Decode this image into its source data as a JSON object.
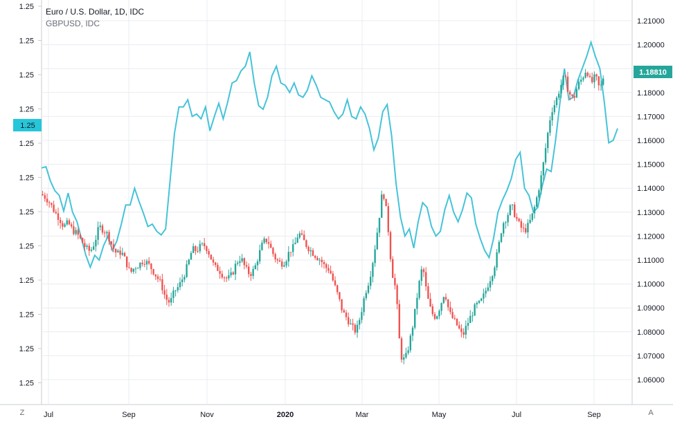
{
  "legend": {
    "title": "Euro / U.S. Dollar, 1D, IDC",
    "subtitle": "GBPUSD, IDC"
  },
  "left_axis": {
    "ticks": [
      "1.25",
      "1.25",
      "1.25",
      "1.25",
      "1.25",
      "1.25",
      "1.25",
      "1.25",
      "1.25",
      "1.25",
      "1.25",
      "1.25"
    ],
    "badge": "1.25"
  },
  "right_axis": {
    "ticks": [
      "1.21000",
      "1.20000",
      "1.19000",
      "1.18000",
      "1.17000",
      "1.16000",
      "1.15000",
      "1.14000",
      "1.13000",
      "1.12000",
      "1.11000",
      "1.10000",
      "1.09000",
      "1.08000",
      "1.07000",
      "1.06000"
    ],
    "badge": "1.18810"
  },
  "x_axis": {
    "ticks": [
      "Jul",
      "Sep",
      "Nov",
      "2020",
      "Mar",
      "May",
      "Jul",
      "Sep"
    ]
  },
  "corner_buttons": {
    "left": "Z",
    "right": "A"
  },
  "colors": {
    "up": "#26a69a",
    "down": "#ef5350",
    "overlay": "#45c3d8",
    "grid": "#e9ecf1",
    "price_badge": "#26a69a",
    "left_badge": "#26c6da"
  },
  "chart_data": {
    "type": "candlestick",
    "title": "Euro / U.S. Dollar, 1D, IDC",
    "x_ticks": [
      "Jul",
      "Sep",
      "Nov",
      "2020",
      "Mar",
      "May",
      "Jul",
      "Sep"
    ],
    "y_range_right": [
      1.055,
      1.215
    ],
    "last_price": 1.1881,
    "series": [
      {
        "name": "Euro / U.S. Dollar",
        "axis": "right",
        "kind": "candle",
        "close_path": [
          [
            0,
            1.1375
          ],
          [
            4,
            1.136
          ],
          [
            8,
            1.1335
          ],
          [
            12,
            1.13
          ],
          [
            16,
            1.1275
          ],
          [
            20,
            1.124
          ],
          [
            24,
            1.1255
          ],
          [
            28,
            1.1225
          ],
          [
            32,
            1.121
          ],
          [
            36,
            1.118
          ],
          [
            40,
            1.115
          ],
          [
            44,
            1.1135
          ],
          [
            48,
            1.1175
          ],
          [
            52,
            1.124
          ],
          [
            56,
            1.1225
          ],
          [
            60,
            1.1205
          ],
          [
            64,
            1.1155
          ],
          [
            68,
            1.1125
          ],
          [
            72,
            1.1135
          ],
          [
            76,
            1.1095
          ],
          [
            80,
            1.1045
          ],
          [
            84,
            1.107
          ],
          [
            88,
            1.108
          ],
          [
            92,
            1.11
          ],
          [
            96,
            1.1085
          ],
          [
            100,
            1.106
          ],
          [
            104,
            1.103
          ],
          [
            108,
            1.1
          ],
          [
            112,
            1.094
          ],
          [
            116,
            1.092
          ],
          [
            120,
            1.097
          ],
          [
            124,
            1.099
          ],
          [
            128,
            1.103
          ],
          [
            132,
            1.108
          ],
          [
            136,
            1.1145
          ],
          [
            140,
            1.114
          ],
          [
            144,
            1.116
          ],
          [
            148,
            1.116
          ],
          [
            152,
            1.112
          ],
          [
            156,
            1.107
          ],
          [
            160,
            1.106
          ],
          [
            164,
            1.1035
          ],
          [
            168,
            1.102
          ],
          [
            172,
            1.104
          ],
          [
            176,
            1.109
          ],
          [
            180,
            1.111
          ],
          [
            184,
            1.1065
          ],
          [
            188,
            1.104
          ],
          [
            192,
            1.106
          ],
          [
            196,
            1.112
          ],
          [
            200,
            1.1175
          ],
          [
            204,
            1.1185
          ],
          [
            208,
            1.1135
          ],
          [
            212,
            1.11
          ],
          [
            216,
            1.1085
          ],
          [
            220,
            1.1095
          ],
          [
            224,
            1.114
          ],
          [
            228,
            1.1155
          ],
          [
            232,
            1.1215
          ],
          [
            236,
            1.1185
          ],
          [
            240,
            1.1155
          ],
          [
            244,
            1.1135
          ],
          [
            248,
            1.1115
          ],
          [
            252,
            1.11
          ],
          [
            256,
            1.107
          ],
          [
            260,
            1.106
          ],
          [
            264,
            1.1
          ],
          [
            268,
            1.0945
          ],
          [
            272,
            1.088
          ],
          [
            276,
            1.0855
          ],
          [
            280,
            1.082
          ],
          [
            284,
            1.08
          ],
          [
            288,
            1.087
          ],
          [
            292,
            1.096
          ],
          [
            296,
            1.102
          ],
          [
            300,
            1.112
          ],
          [
            304,
            1.125
          ],
          [
            308,
            1.14
          ],
          [
            312,
            1.128
          ],
          [
            316,
            1.106
          ],
          [
            320,
            1.097
          ],
          [
            324,
            1.07
          ],
          [
            328,
            1.068
          ],
          [
            332,
            1.075
          ],
          [
            336,
            1.085
          ],
          [
            340,
            1.098
          ],
          [
            344,
            1.108
          ],
          [
            348,
            1.095
          ],
          [
            352,
            1.088
          ],
          [
            356,
            1.086
          ],
          [
            360,
            1.091
          ],
          [
            364,
            1.097
          ],
          [
            368,
            1.088
          ],
          [
            372,
            1.085
          ],
          [
            376,
            1.082
          ],
          [
            380,
            1.078
          ],
          [
            384,
            1.083
          ],
          [
            388,
            1.087
          ],
          [
            392,
            1.091
          ],
          [
            396,
            1.092
          ],
          [
            400,
            1.096
          ],
          [
            404,
            1.101
          ],
          [
            408,
            1.106
          ],
          [
            412,
            1.114
          ],
          [
            416,
            1.125
          ],
          [
            420,
            1.128
          ],
          [
            424,
            1.133
          ],
          [
            428,
            1.128
          ],
          [
            432,
            1.124
          ],
          [
            436,
            1.122
          ],
          [
            440,
            1.125
          ],
          [
            444,
            1.13
          ],
          [
            448,
            1.138
          ],
          [
            452,
            1.147
          ],
          [
            456,
            1.16
          ],
          [
            460,
            1.172
          ],
          [
            464,
            1.176
          ],
          [
            468,
            1.182
          ],
          [
            472,
            1.187
          ],
          [
            476,
            1.18
          ],
          [
            480,
            1.177
          ],
          [
            484,
            1.183
          ],
          [
            488,
            1.186
          ],
          [
            492,
            1.19
          ],
          [
            496,
            1.1835
          ],
          [
            500,
            1.187
          ],
          [
            504,
            1.181
          ],
          [
            508,
            1.1881
          ]
        ]
      },
      {
        "name": "GBPUSD",
        "axis": "left",
        "kind": "line",
        "path_unscaled": [
          [
            0,
            1.1485
          ],
          [
            4,
            1.149
          ],
          [
            8,
            1.143
          ],
          [
            12,
            1.139
          ],
          [
            16,
            1.137
          ],
          [
            20,
            1.1305
          ],
          [
            24,
            1.138
          ],
          [
            28,
            1.13
          ],
          [
            32,
            1.126
          ],
          [
            36,
            1.119
          ],
          [
            40,
            1.112
          ],
          [
            44,
            1.107
          ],
          [
            48,
            1.112
          ],
          [
            52,
            1.11
          ],
          [
            56,
            1.116
          ],
          [
            60,
            1.12
          ],
          [
            64,
            1.114
          ],
          [
            68,
            1.118
          ],
          [
            72,
            1.125
          ],
          [
            76,
            1.133
          ],
          [
            80,
            1.133
          ],
          [
            84,
            1.14
          ],
          [
            88,
            1.1345
          ],
          [
            92,
            1.1295
          ],
          [
            96,
            1.124
          ],
          [
            100,
            1.125
          ],
          [
            104,
            1.122
          ],
          [
            108,
            1.1205
          ],
          [
            112,
            1.123
          ],
          [
            116,
            1.143
          ],
          [
            120,
            1.163
          ],
          [
            124,
            1.174
          ],
          [
            128,
            1.174
          ],
          [
            132,
            1.177
          ],
          [
            136,
            1.17
          ],
          [
            140,
            1.171
          ],
          [
            144,
            1.169
          ],
          [
            148,
            1.174
          ],
          [
            152,
            1.164
          ],
          [
            156,
            1.17
          ],
          [
            160,
            1.1755
          ],
          [
            164,
            1.169
          ],
          [
            168,
            1.176
          ],
          [
            172,
            1.184
          ],
          [
            176,
            1.185
          ],
          [
            180,
            1.189
          ],
          [
            184,
            1.191
          ],
          [
            188,
            1.197
          ],
          [
            192,
            1.184
          ],
          [
            196,
            1.1745
          ],
          [
            200,
            1.173
          ],
          [
            204,
            1.178
          ],
          [
            208,
            1.187
          ],
          [
            212,
            1.191
          ],
          [
            216,
            1.184
          ],
          [
            220,
            1.183
          ],
          [
            224,
            1.18
          ],
          [
            228,
            1.184
          ],
          [
            232,
            1.179
          ],
          [
            236,
            1.178
          ],
          [
            240,
            1.181
          ],
          [
            244,
            1.187
          ],
          [
            248,
            1.183
          ],
          [
            252,
            1.178
          ],
          [
            256,
            1.177
          ],
          [
            260,
            1.176
          ],
          [
            264,
            1.172
          ],
          [
            268,
            1.169
          ],
          [
            272,
            1.171
          ],
          [
            276,
            1.177
          ],
          [
            280,
            1.17
          ],
          [
            284,
            1.169
          ],
          [
            288,
            1.174
          ],
          [
            292,
            1.171
          ],
          [
            296,
            1.165
          ],
          [
            300,
            1.156
          ],
          [
            304,
            1.161
          ],
          [
            308,
            1.172
          ],
          [
            312,
            1.175
          ],
          [
            316,
            1.162
          ],
          [
            320,
            1.142
          ],
          [
            324,
            1.128
          ],
          [
            328,
            1.12
          ],
          [
            332,
            1.123
          ],
          [
            336,
            1.115
          ],
          [
            340,
            1.126
          ],
          [
            344,
            1.134
          ],
          [
            348,
            1.132
          ],
          [
            352,
            1.124
          ],
          [
            356,
            1.12
          ],
          [
            360,
            1.122
          ],
          [
            364,
            1.131
          ],
          [
            368,
            1.137
          ],
          [
            372,
            1.13
          ],
          [
            376,
            1.126
          ],
          [
            380,
            1.131
          ],
          [
            384,
            1.138
          ],
          [
            388,
            1.136
          ],
          [
            392,
            1.125
          ],
          [
            396,
            1.119
          ],
          [
            400,
            1.114
          ],
          [
            404,
            1.111
          ],
          [
            408,
            1.119
          ],
          [
            412,
            1.13
          ],
          [
            416,
            1.135
          ],
          [
            420,
            1.139
          ],
          [
            424,
            1.144
          ],
          [
            428,
            1.152
          ],
          [
            432,
            1.155
          ],
          [
            436,
            1.14
          ],
          [
            440,
            1.137
          ],
          [
            444,
            1.13
          ],
          [
            448,
            1.132
          ],
          [
            452,
            1.141
          ],
          [
            456,
            1.148
          ],
          [
            460,
            1.147
          ],
          [
            464,
            1.16
          ],
          [
            468,
            1.176
          ],
          [
            472,
            1.19
          ],
          [
            476,
            1.177
          ],
          [
            480,
            1.178
          ],
          [
            484,
            1.185
          ],
          [
            488,
            1.19
          ],
          [
            492,
            1.195
          ],
          [
            496,
            1.201
          ],
          [
            500,
            1.195
          ],
          [
            504,
            1.19
          ],
          [
            508,
            1.176
          ],
          [
            512,
            1.159
          ],
          [
            516,
            1.16
          ],
          [
            520,
            1.165
          ]
        ]
      }
    ]
  }
}
